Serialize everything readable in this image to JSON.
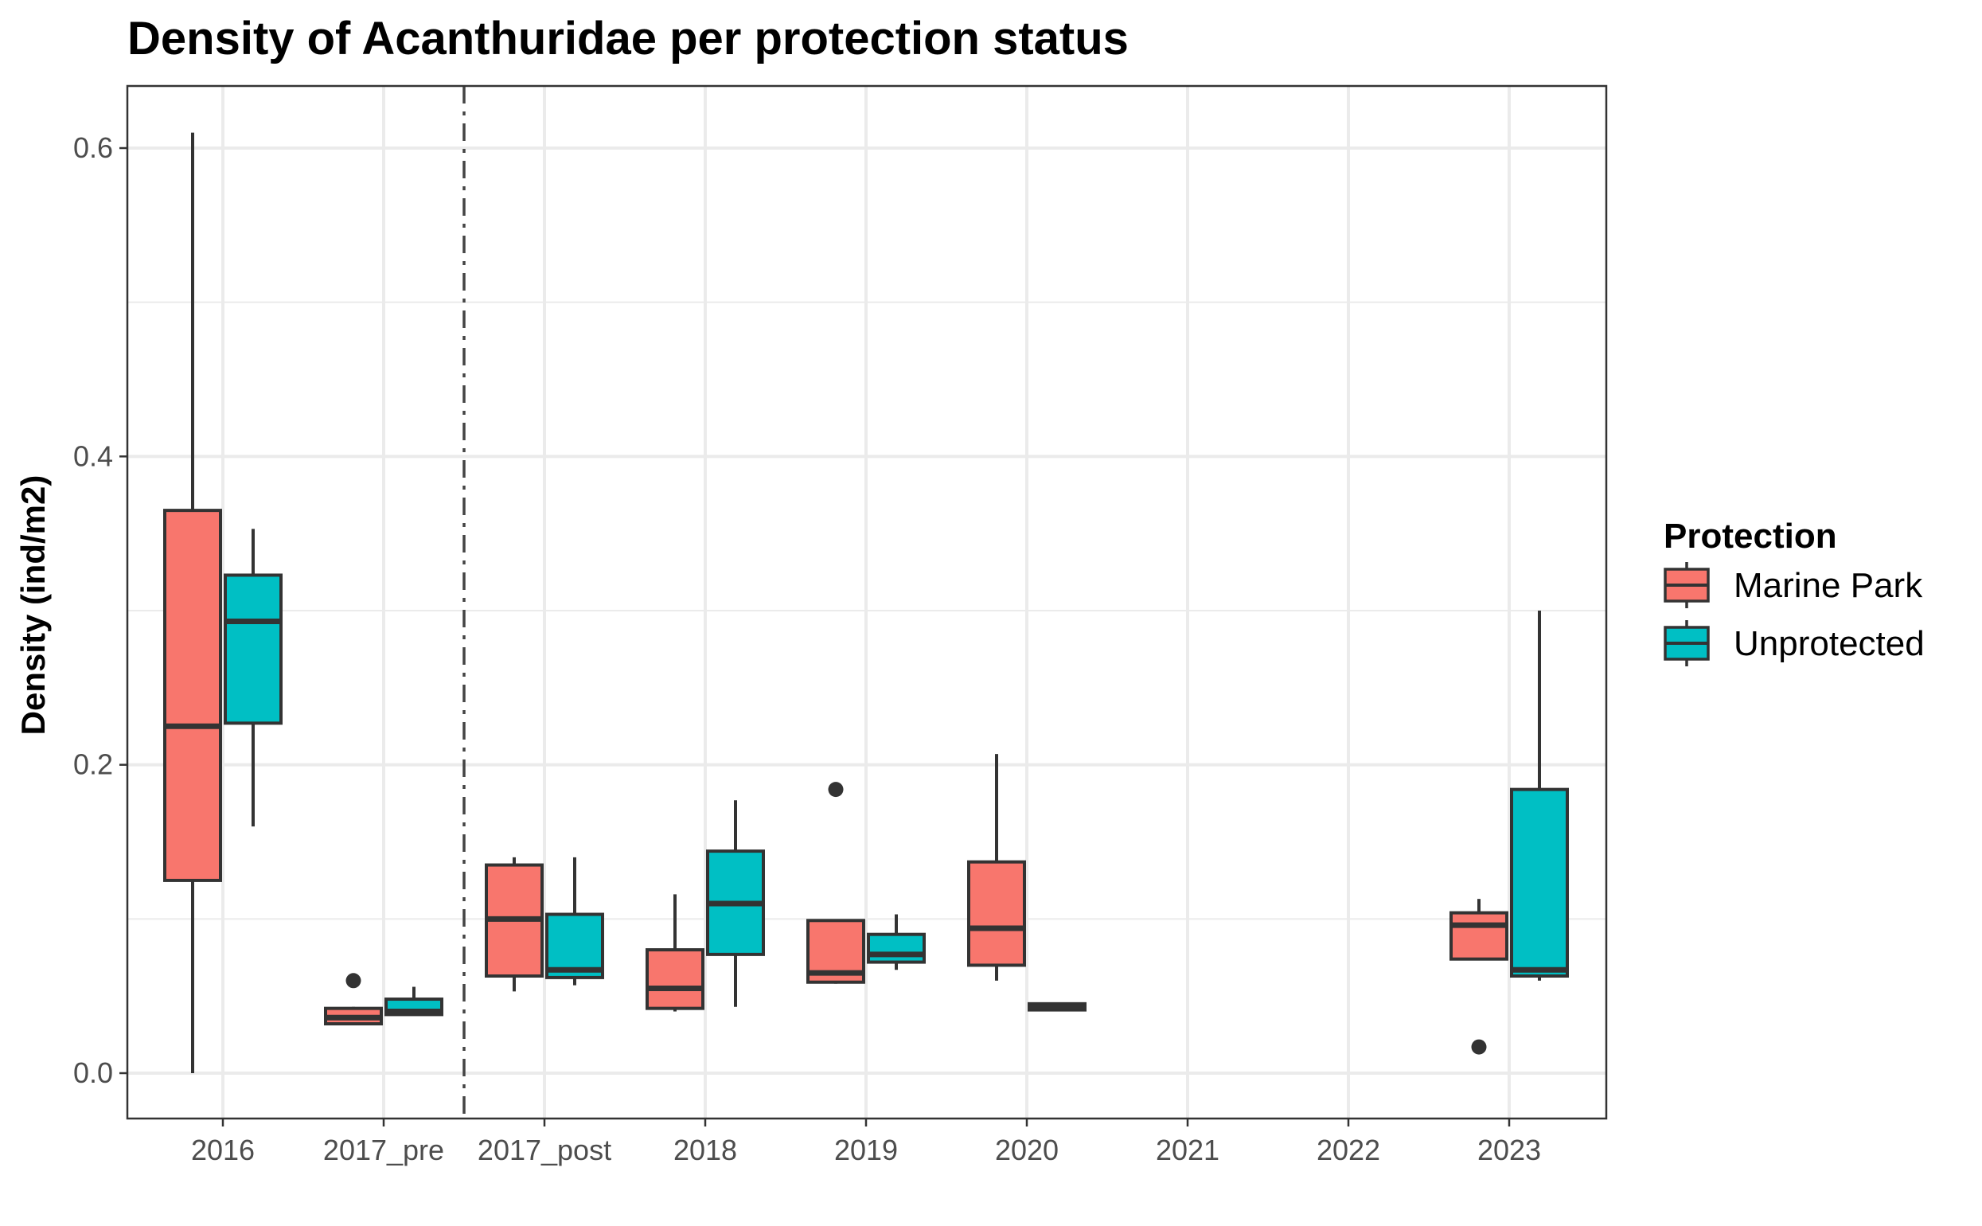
{
  "chart_data": {
    "type": "boxplot",
    "title": "Density of Acanthuridae per protection status",
    "xlabel": "",
    "ylabel": "Density (ind/m2)",
    "ylim": [
      -0.03,
      0.64
    ],
    "yticks": [
      0.0,
      0.2,
      0.4,
      0.6
    ],
    "ytick_labels": [
      "0.0",
      "0.2",
      "0.4",
      "0.6"
    ],
    "categories": [
      "2016",
      "2017_pre",
      "2017_post",
      "2018",
      "2019",
      "2020",
      "2021",
      "2022",
      "2023"
    ],
    "grid": true,
    "vline": {
      "between": [
        "2017_pre",
        "2017_post"
      ],
      "style": "dashdot"
    },
    "legend": {
      "title": "Protection",
      "placement": "right",
      "entries": [
        "Marine Park",
        "Unprotected"
      ]
    },
    "series": [
      {
        "name": "Marine Park",
        "color": "#F8766D",
        "boxes": [
          {
            "category": "2016",
            "whisker_low": 0.0,
            "q1": 0.125,
            "median": 0.225,
            "q3": 0.365,
            "whisker_high": 0.61,
            "outliers": []
          },
          {
            "category": "2017_pre",
            "whisker_low": 0.031,
            "q1": 0.032,
            "median": 0.036,
            "q3": 0.042,
            "whisker_high": 0.043,
            "outliers": [
              0.06
            ]
          },
          {
            "category": "2017_post",
            "whisker_low": 0.053,
            "q1": 0.063,
            "median": 0.1,
            "q3": 0.135,
            "whisker_high": 0.14,
            "outliers": []
          },
          {
            "category": "2018",
            "whisker_low": 0.04,
            "q1": 0.042,
            "median": 0.055,
            "q3": 0.08,
            "whisker_high": 0.116,
            "outliers": []
          },
          {
            "category": "2019",
            "whisker_low": 0.058,
            "q1": 0.059,
            "median": 0.065,
            "q3": 0.099,
            "whisker_high": 0.099,
            "outliers": [
              0.184
            ]
          },
          {
            "category": "2020",
            "whisker_low": 0.06,
            "q1": 0.07,
            "median": 0.094,
            "q3": 0.137,
            "whisker_high": 0.207,
            "outliers": []
          },
          {
            "category": "2023",
            "whisker_low": 0.074,
            "q1": 0.074,
            "median": 0.096,
            "q3": 0.104,
            "whisker_high": 0.113,
            "outliers": [
              0.017
            ]
          }
        ]
      },
      {
        "name": "Unprotected",
        "color": "#00BFC4",
        "boxes": [
          {
            "category": "2016",
            "whisker_low": 0.16,
            "q1": 0.227,
            "median": 0.293,
            "q3": 0.323,
            "whisker_high": 0.353,
            "outliers": []
          },
          {
            "category": "2017_pre",
            "whisker_low": 0.038,
            "q1": 0.038,
            "median": 0.04,
            "q3": 0.048,
            "whisker_high": 0.056,
            "outliers": []
          },
          {
            "category": "2017_post",
            "whisker_low": 0.057,
            "q1": 0.062,
            "median": 0.067,
            "q3": 0.103,
            "whisker_high": 0.14,
            "outliers": []
          },
          {
            "category": "2018",
            "whisker_low": 0.043,
            "q1": 0.077,
            "median": 0.11,
            "q3": 0.144,
            "whisker_high": 0.177,
            "outliers": []
          },
          {
            "category": "2019",
            "whisker_low": 0.067,
            "q1": 0.072,
            "median": 0.077,
            "q3": 0.09,
            "whisker_high": 0.103,
            "outliers": []
          },
          {
            "category": "2020",
            "whisker_low": 0.041,
            "q1": 0.041,
            "median": 0.043,
            "q3": 0.045,
            "whisker_high": 0.045,
            "outliers": []
          },
          {
            "category": "2023",
            "whisker_low": 0.06,
            "q1": 0.063,
            "median": 0.067,
            "q3": 0.184,
            "whisker_high": 0.3,
            "outliers": []
          }
        ]
      }
    ]
  }
}
